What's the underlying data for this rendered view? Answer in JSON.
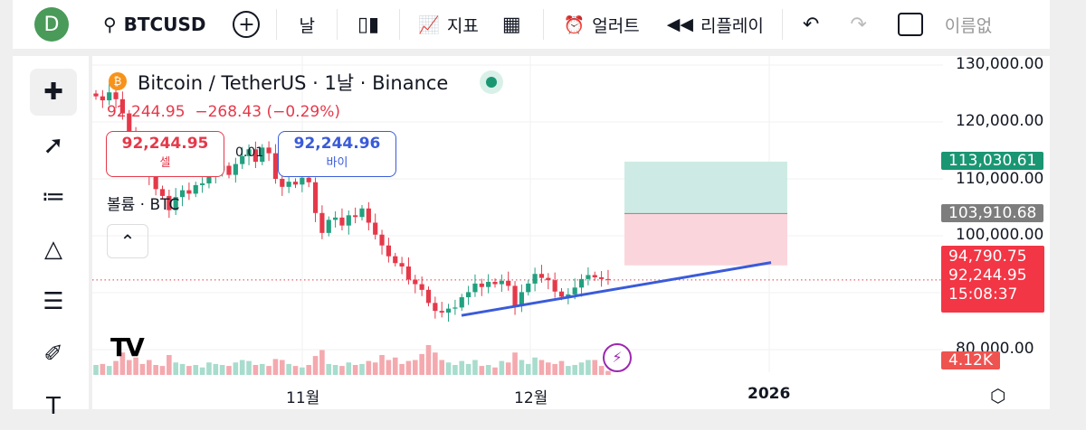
{
  "toolbar": {
    "avatar": "D",
    "symbol": "BTCUSD",
    "interval": "날",
    "indicators": "지표",
    "alert": "얼러트",
    "replay": "리플레이",
    "layout_name": "이름없"
  },
  "legend": {
    "title": "Bitcoin / TetherUS · 1날 · Binance",
    "price": "92,244.95",
    "change": "−268.43 (−0.29%)",
    "sell_price": "92,244.95",
    "sell_label": "셀",
    "spread": "0.01",
    "buy_price": "92,244.96",
    "buy_label": "바이",
    "volume_label": "볼륨 · BTC"
  },
  "price_axis": {
    "ticks": [
      "130,000.00",
      "120,000.00",
      "110,000.00",
      "100,000.00",
      "80,000.00"
    ],
    "tags": {
      "target": "113,030.61",
      "entry": "103,910.68",
      "stop": "94,790.75",
      "last": "92,244.95",
      "countdown": "15:08:37",
      "volume": "4.12K"
    }
  },
  "time_axis": {
    "ticks": [
      "11월",
      "12월",
      "2026"
    ]
  },
  "colors": {
    "up": "#22a07f",
    "down": "#e5394a",
    "trend": "#3a5bd9",
    "target": "#1a9673",
    "entry": "#7d7d7d",
    "stop": "#f23645"
  },
  "chart_data": {
    "type": "candlestick",
    "ylim": [
      78000,
      132000
    ],
    "closes": [
      124500,
      123800,
      125200,
      124000,
      121500,
      118000,
      115500,
      113000,
      110500,
      108200,
      107000,
      104500,
      106800,
      108000,
      107400,
      108900,
      109200,
      110800,
      111500,
      112300,
      110700,
      112600,
      114000,
      115200,
      113000,
      115500,
      114500,
      110000,
      108600,
      109500,
      109000,
      110200,
      109400,
      104000,
      100500,
      102800,
      103200,
      101800,
      103600,
      103300,
      104800,
      102300,
      100200,
      98300,
      96400,
      95200,
      94600,
      92300,
      91500,
      90500,
      88200,
      86800,
      86500,
      87200,
      87400,
      89200,
      90100,
      91600,
      91000,
      91900,
      91500,
      92100,
      91200,
      87700,
      90100,
      91600,
      93300,
      92600,
      92200,
      90200,
      89300,
      89700,
      90900,
      92400,
      93100,
      92700,
      92400,
      92244
    ],
    "volumes": [
      20,
      22,
      18,
      28,
      45,
      30,
      35,
      22,
      30,
      20,
      18,
      40,
      25,
      22,
      18,
      20,
      15,
      25,
      22,
      20,
      18,
      25,
      30,
      28,
      20,
      22,
      18,
      32,
      30,
      22,
      18,
      15,
      20,
      38,
      50,
      22,
      20,
      18,
      25,
      20,
      22,
      28,
      25,
      40,
      30,
      35,
      22,
      28,
      30,
      42,
      60,
      45,
      30,
      25,
      20,
      28,
      22,
      30,
      18,
      20,
      15,
      28,
      25,
      45,
      30,
      22,
      35,
      30,
      25,
      22,
      28,
      18,
      20,
      25,
      30,
      30,
      18,
      8
    ]
  },
  "trendline": {
    "from": 86000,
    "to": 95300
  }
}
